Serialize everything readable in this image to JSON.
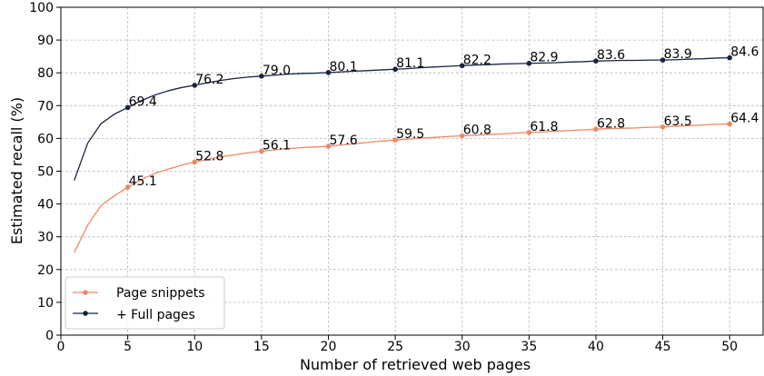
{
  "chart_data": {
    "type": "line",
    "xlabel": "Number of retrieved web pages",
    "ylabel": "Estimated recall (%)",
    "xlim": [
      0,
      52.5
    ],
    "ylim": [
      0,
      100
    ],
    "xticks": [
      0,
      5,
      10,
      15,
      20,
      25,
      30,
      35,
      40,
      45,
      50
    ],
    "yticks": [
      0,
      10,
      20,
      30,
      40,
      50,
      60,
      70,
      80,
      90,
      100
    ],
    "grid": true,
    "legend_position": "lower-left",
    "series": [
      {
        "name": "Page snippets",
        "color": "#ee8866",
        "x": [
          1,
          2,
          3,
          4,
          5,
          6,
          7,
          8,
          9,
          10,
          11,
          12,
          13,
          14,
          15,
          16,
          17,
          18,
          19,
          20,
          21,
          22,
          23,
          24,
          25,
          26,
          27,
          28,
          29,
          30,
          31,
          32,
          33,
          34,
          35,
          36,
          37,
          38,
          39,
          40,
          41,
          42,
          43,
          44,
          45,
          46,
          47,
          48,
          49,
          50
        ],
        "y": [
          25.2,
          33.5,
          39.5,
          42.5,
          45.1,
          47.4,
          49.3,
          50.6,
          51.8,
          52.8,
          53.6,
          54.4,
          55.0,
          55.6,
          56.1,
          56.5,
          56.9,
          57.2,
          57.4,
          57.6,
          58.0,
          58.4,
          58.8,
          59.2,
          59.5,
          59.8,
          60.1,
          60.3,
          60.6,
          60.8,
          61.0,
          61.2,
          61.4,
          61.6,
          61.8,
          62.0,
          62.2,
          62.4,
          62.6,
          62.8,
          63.0,
          63.1,
          63.2,
          63.4,
          63.5,
          63.7,
          63.9,
          64.1,
          64.3,
          64.4
        ],
        "marker_x": [
          5,
          10,
          15,
          20,
          25,
          30,
          35,
          40,
          45,
          50
        ],
        "labels": [
          "45.1",
          "52.8",
          "56.1",
          "57.6",
          "59.5",
          "60.8",
          "61.8",
          "62.8",
          "63.5",
          "64.4"
        ]
      },
      {
        "name": "+ Full pages",
        "color": "#1a2342",
        "x": [
          1,
          2,
          3,
          4,
          5,
          6,
          7,
          8,
          9,
          10,
          11,
          12,
          13,
          14,
          15,
          16,
          17,
          18,
          19,
          20,
          21,
          22,
          23,
          24,
          25,
          26,
          27,
          28,
          29,
          30,
          31,
          32,
          33,
          34,
          35,
          36,
          37,
          38,
          39,
          40,
          41,
          42,
          43,
          44,
          45,
          46,
          47,
          48,
          49,
          50
        ],
        "y": [
          47.2,
          58.5,
          64.5,
          67.4,
          69.4,
          71.5,
          73.2,
          74.5,
          75.5,
          76.2,
          77.0,
          77.7,
          78.3,
          78.7,
          79.0,
          79.3,
          79.6,
          79.8,
          79.9,
          80.1,
          80.3,
          80.5,
          80.7,
          80.9,
          81.1,
          81.3,
          81.6,
          81.8,
          82.0,
          82.2,
          82.4,
          82.5,
          82.7,
          82.8,
          82.9,
          83.0,
          83.1,
          83.3,
          83.4,
          83.6,
          83.7,
          83.8,
          83.8,
          83.9,
          83.9,
          84.0,
          84.2,
          84.3,
          84.5,
          84.6
        ],
        "marker_x": [
          5,
          10,
          15,
          20,
          25,
          30,
          35,
          40,
          45,
          50
        ],
        "labels": [
          "69.4",
          "76.2",
          "79.0",
          "80.1",
          "81.1",
          "82.2",
          "82.9",
          "83.6",
          "83.9",
          "84.6"
        ]
      }
    ]
  }
}
